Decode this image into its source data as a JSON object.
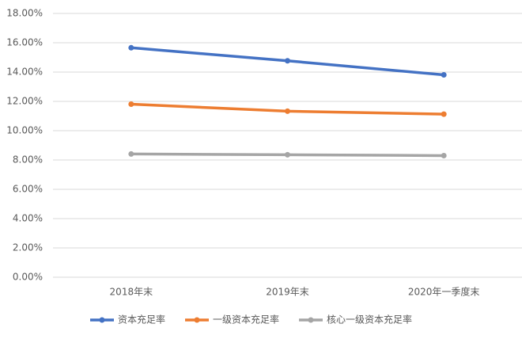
{
  "chart_data": {
    "type": "line",
    "categories": [
      "2018年末",
      "2019年末",
      "2020年一季度末"
    ],
    "series": [
      {
        "name": "资本充足率",
        "color": "#4472c4",
        "values": [
          15.66,
          14.77,
          13.81
        ]
      },
      {
        "name": "一级资本充足率",
        "color": "#ed7d31",
        "values": [
          11.81,
          11.33,
          11.13
        ]
      },
      {
        "name": "核心一级资本充足率",
        "color": "#a5a5a5",
        "values": [
          8.41,
          8.36,
          8.3
        ]
      }
    ],
    "ylim": [
      0,
      18
    ],
    "yticks": [
      {
        "value": 0,
        "label": "0.00%"
      },
      {
        "value": 2,
        "label": "2.00%"
      },
      {
        "value": 4,
        "label": "4.00%"
      },
      {
        "value": 6,
        "label": "6.00%"
      },
      {
        "value": 8,
        "label": "8.00%"
      },
      {
        "value": 10,
        "label": "10.00%"
      },
      {
        "value": 12,
        "label": "12.00%"
      },
      {
        "value": 14,
        "label": "14.00%"
      },
      {
        "value": 16,
        "label": "16.00%"
      },
      {
        "value": 18,
        "label": "18.00%"
      }
    ],
    "grid": true,
    "legend": "bottom"
  }
}
